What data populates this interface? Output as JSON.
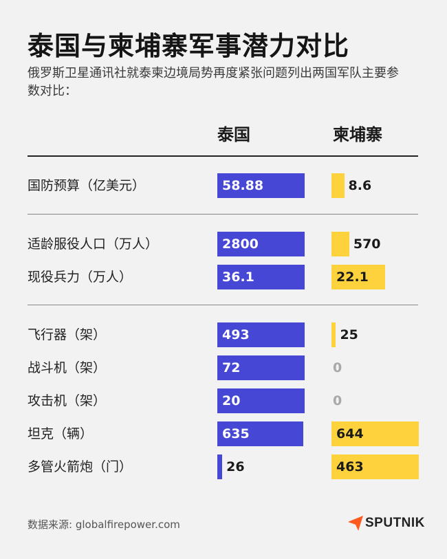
{
  "title": "泰国与柬埔寨军事潜力对比",
  "subtitle": "俄罗斯卫星通讯社就泰柬边境局势再度紧张问题列出两国军队主要参数对比：",
  "source": "数据来源: globalfirepower.com",
  "logo": "SPUTNIK",
  "colors": {
    "thailand": "#4747d6",
    "cambodia": "#fdd23d",
    "logo": "#ff5a1f"
  },
  "chart_data": {
    "type": "bar",
    "series": [
      {
        "name": "泰国",
        "values": [
          58.88,
          2800,
          36.1,
          493,
          72,
          20,
          635,
          26
        ]
      },
      {
        "name": "柬埔寨",
        "values": [
          8.6,
          570,
          22.1,
          25,
          0,
          0,
          644,
          463
        ]
      }
    ],
    "categories": [
      "国防预算（亿美元）",
      "适龄服役人口（万人）",
      "现役兵力（万人）",
      "飞行器（架）",
      "战斗机（架）",
      "攻击机（架）",
      "坦克（辆）",
      "多管火箭炮（门）"
    ],
    "display_values": [
      [
        "58.88",
        "8.6"
      ],
      [
        "2800",
        "570"
      ],
      [
        "36.1",
        "22.1"
      ],
      [
        "493",
        "25"
      ],
      [
        "72",
        "0"
      ],
      [
        "20",
        "0"
      ],
      [
        "635",
        "644"
      ],
      [
        "26",
        "463"
      ]
    ],
    "groups": [
      [
        0
      ],
      [
        1,
        2
      ],
      [
        3,
        4,
        5,
        6,
        7
      ]
    ]
  }
}
